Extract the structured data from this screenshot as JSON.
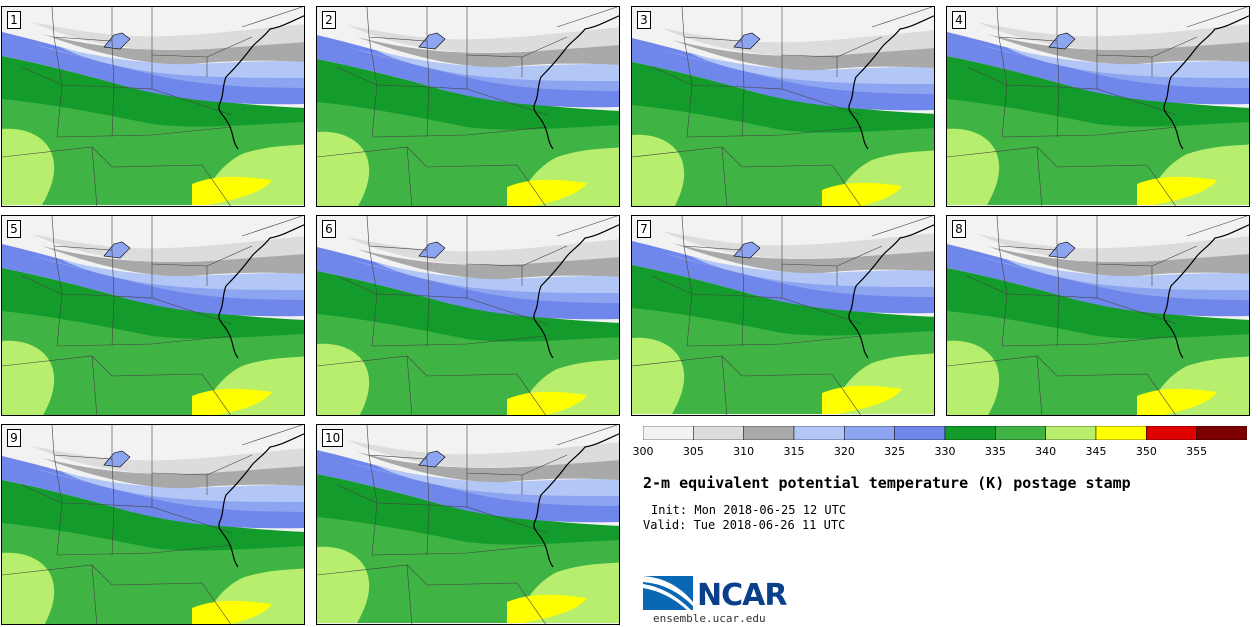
{
  "figure": {
    "title": "2-m equivalent potential temperature (K) postage stamp",
    "init": "Init: Mon 2018-06-25 12 UTC",
    "valid": "Valid: Tue 2018-06-26 11 UTC",
    "logo_text": "NCAR",
    "site": "ensemble.ucar.edu"
  },
  "members": [
    "1",
    "2",
    "3",
    "4",
    "5",
    "6",
    "7",
    "8",
    "9",
    "10"
  ],
  "colorbar": {
    "units": "K",
    "tick_labels": [
      "300",
      "305",
      "310",
      "315",
      "320",
      "325",
      "330",
      "335",
      "340",
      "345",
      "350",
      "355"
    ],
    "bins": [
      {
        "min": 300,
        "max": 305,
        "color": "#f2f2f2"
      },
      {
        "min": 305,
        "max": 310,
        "color": "#dcdcdc"
      },
      {
        "min": 310,
        "max": 315,
        "color": "#a9a9a9"
      },
      {
        "min": 315,
        "max": 320,
        "color": "#b3c7f7"
      },
      {
        "min": 320,
        "max": 325,
        "color": "#8da4f0"
      },
      {
        "min": 325,
        "max": 330,
        "color": "#6f86ea"
      },
      {
        "min": 330,
        "max": 335,
        "color": "#139b2c"
      },
      {
        "min": 335,
        "max": 340,
        "color": "#3fb444"
      },
      {
        "min": 340,
        "max": 345,
        "color": "#b7ee6e"
      },
      {
        "min": 345,
        "max": 350,
        "color": "#ffff00"
      },
      {
        "min": 350,
        "max": 355,
        "color": "#e10000"
      },
      {
        "min": 355,
        "max": 360,
        "color": "#7d0000"
      }
    ]
  }
}
